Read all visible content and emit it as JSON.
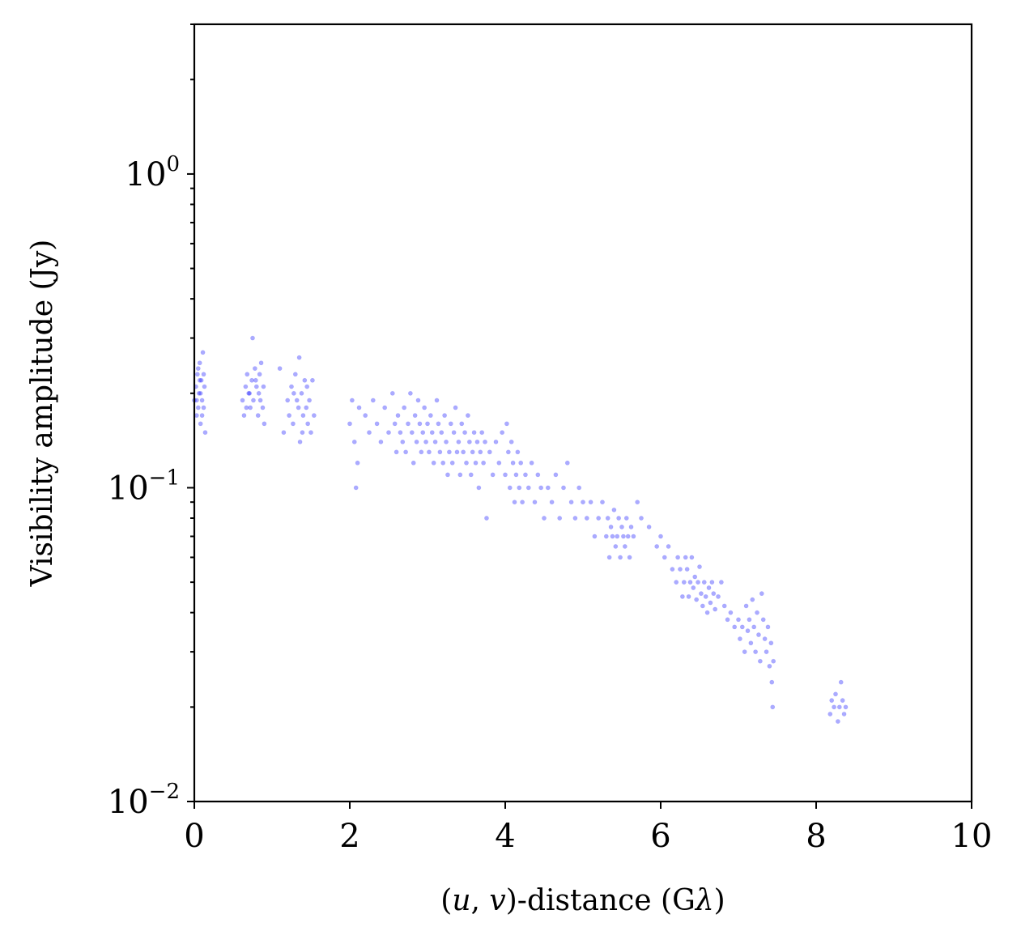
{
  "chart_data": {
    "type": "scatter",
    "xlabel": "(u, v)-distance (Gλ)",
    "xlabel_parts": {
      "open": "(",
      "u": "u",
      "comma": ", ",
      "v": "v",
      "rest": ")-distance (G",
      "lambda": "λ",
      "close": ")"
    },
    "ylabel": "Visibility amplitude (Jy)",
    "xlim": [
      0,
      10
    ],
    "ylim": [
      0.01,
      3
    ],
    "yscale": "log",
    "grid": false,
    "x_ticks": [
      {
        "value": 0,
        "label": "0"
      },
      {
        "value": 2,
        "label": "2"
      },
      {
        "value": 4,
        "label": "4"
      },
      {
        "value": 6,
        "label": "6"
      },
      {
        "value": 8,
        "label": "8"
      },
      {
        "value": 10,
        "label": "10"
      }
    ],
    "y_ticks": [
      {
        "value": 0.01,
        "base": "10",
        "exp": "−2"
      },
      {
        "value": 0.1,
        "base": "10",
        "exp": "−1"
      },
      {
        "value": 1,
        "base": "10",
        "exp": "0"
      }
    ],
    "marker_color": "#0000ff",
    "series": [
      {
        "points": [
          [
            0.0,
            0.19
          ],
          [
            0.02,
            0.21
          ],
          [
            0.03,
            0.17
          ],
          [
            0.04,
            0.23
          ],
          [
            0.05,
            0.18
          ],
          [
            0.06,
            0.2
          ],
          [
            0.07,
            0.25
          ],
          [
            0.08,
            0.16
          ],
          [
            0.09,
            0.22
          ],
          [
            0.1,
            0.19
          ],
          [
            0.11,
            0.27
          ],
          [
            0.12,
            0.18
          ],
          [
            0.13,
            0.21
          ],
          [
            0.14,
            0.15
          ],
          [
            0.05,
            0.24
          ],
          [
            0.08,
            0.2
          ],
          [
            0.12,
            0.23
          ],
          [
            0.03,
            0.19
          ],
          [
            0.1,
            0.17
          ],
          [
            0.07,
            0.22
          ],
          [
            0.62,
            0.19
          ],
          [
            0.64,
            0.17
          ],
          [
            0.66,
            0.21
          ],
          [
            0.68,
            0.23
          ],
          [
            0.7,
            0.2
          ],
          [
            0.72,
            0.18
          ],
          [
            0.74,
            0.22
          ],
          [
            0.75,
            0.3
          ],
          [
            0.76,
            0.19
          ],
          [
            0.78,
            0.24
          ],
          [
            0.8,
            0.21
          ],
          [
            0.82,
            0.17
          ],
          [
            0.83,
            0.2
          ],
          [
            0.84,
            0.23
          ],
          [
            0.85,
            0.19
          ],
          [
            0.86,
            0.25
          ],
          [
            0.88,
            0.18
          ],
          [
            0.89,
            0.21
          ],
          [
            0.9,
            0.16
          ],
          [
            0.79,
            0.22
          ],
          [
            0.71,
            0.2
          ],
          [
            0.67,
            0.18
          ],
          [
            1.1,
            0.24
          ],
          [
            1.15,
            0.15
          ],
          [
            1.2,
            0.19
          ],
          [
            1.22,
            0.17
          ],
          [
            1.25,
            0.21
          ],
          [
            1.27,
            0.16
          ],
          [
            1.3,
            0.23
          ],
          [
            1.32,
            0.19
          ],
          [
            1.34,
            0.18
          ],
          [
            1.35,
            0.26
          ],
          [
            1.36,
            0.14
          ],
          [
            1.38,
            0.2
          ],
          [
            1.4,
            0.17
          ],
          [
            1.42,
            0.22
          ],
          [
            1.44,
            0.18
          ],
          [
            1.46,
            0.16
          ],
          [
            1.48,
            0.19
          ],
          [
            1.5,
            0.15
          ],
          [
            1.52,
            0.22
          ],
          [
            1.54,
            0.17
          ],
          [
            1.28,
            0.2
          ],
          [
            1.45,
            0.21
          ],
          [
            1.39,
            0.15
          ],
          [
            2.0,
            0.16
          ],
          [
            2.03,
            0.19
          ],
          [
            2.06,
            0.14
          ],
          [
            2.08,
            0.1
          ],
          [
            2.1,
            0.12
          ],
          [
            2.12,
            0.18
          ],
          [
            2.2,
            0.17
          ],
          [
            2.25,
            0.15
          ],
          [
            2.3,
            0.19
          ],
          [
            2.35,
            0.16
          ],
          [
            2.4,
            0.14
          ],
          [
            2.45,
            0.18
          ],
          [
            2.5,
            0.15
          ],
          [
            2.55,
            0.2
          ],
          [
            2.58,
            0.16
          ],
          [
            2.6,
            0.13
          ],
          [
            2.62,
            0.17
          ],
          [
            2.65,
            0.15
          ],
          [
            2.68,
            0.14
          ],
          [
            2.7,
            0.18
          ],
          [
            2.72,
            0.13
          ],
          [
            2.75,
            0.16
          ],
          [
            2.78,
            0.2
          ],
          [
            2.8,
            0.15
          ],
          [
            2.82,
            0.12
          ],
          [
            2.84,
            0.17
          ],
          [
            2.86,
            0.14
          ],
          [
            2.88,
            0.19
          ],
          [
            2.9,
            0.16
          ],
          [
            2.92,
            0.13
          ],
          [
            2.94,
            0.15
          ],
          [
            2.96,
            0.18
          ],
          [
            2.98,
            0.14
          ],
          [
            3.0,
            0.16
          ],
          [
            3.02,
            0.13
          ],
          [
            3.04,
            0.17
          ],
          [
            3.06,
            0.15
          ],
          [
            3.08,
            0.12
          ],
          [
            3.1,
            0.14
          ],
          [
            3.12,
            0.19
          ],
          [
            3.14,
            0.16
          ],
          [
            3.16,
            0.13
          ],
          [
            3.18,
            0.15
          ],
          [
            3.2,
            0.12
          ],
          [
            3.22,
            0.17
          ],
          [
            3.24,
            0.14
          ],
          [
            3.26,
            0.11
          ],
          [
            3.28,
            0.13
          ],
          [
            3.3,
            0.16
          ],
          [
            3.32,
            0.12
          ],
          [
            3.34,
            0.15
          ],
          [
            3.36,
            0.18
          ],
          [
            3.38,
            0.13
          ],
          [
            3.4,
            0.14
          ],
          [
            3.42,
            0.11
          ],
          [
            3.44,
            0.16
          ],
          [
            3.46,
            0.13
          ],
          [
            3.48,
            0.15
          ],
          [
            3.5,
            0.12
          ],
          [
            3.52,
            0.17
          ],
          [
            3.54,
            0.14
          ],
          [
            3.56,
            0.11
          ],
          [
            3.58,
            0.13
          ],
          [
            3.6,
            0.15
          ],
          [
            3.62,
            0.12
          ],
          [
            3.64,
            0.14
          ],
          [
            3.66,
            0.1
          ],
          [
            3.68,
            0.13
          ],
          [
            3.7,
            0.15
          ],
          [
            3.72,
            0.12
          ],
          [
            3.74,
            0.14
          ],
          [
            3.76,
            0.08
          ],
          [
            3.8,
            0.13
          ],
          [
            3.84,
            0.11
          ],
          [
            3.88,
            0.14
          ],
          [
            3.92,
            0.12
          ],
          [
            3.96,
            0.15
          ],
          [
            4.0,
            0.11
          ],
          [
            4.02,
            0.16
          ],
          [
            4.04,
            0.13
          ],
          [
            4.06,
            0.1
          ],
          [
            4.08,
            0.14
          ],
          [
            4.1,
            0.12
          ],
          [
            4.12,
            0.09
          ],
          [
            4.14,
            0.11
          ],
          [
            4.16,
            0.13
          ],
          [
            4.18,
            0.1
          ],
          [
            4.2,
            0.12
          ],
          [
            4.22,
            0.09
          ],
          [
            4.26,
            0.11
          ],
          [
            4.3,
            0.1
          ],
          [
            4.34,
            0.12
          ],
          [
            4.38,
            0.09
          ],
          [
            4.42,
            0.11
          ],
          [
            4.46,
            0.1
          ],
          [
            4.5,
            0.08
          ],
          [
            4.55,
            0.1
          ],
          [
            4.6,
            0.09
          ],
          [
            4.65,
            0.11
          ],
          [
            4.7,
            0.08
          ],
          [
            4.75,
            0.1
          ],
          [
            4.8,
            0.12
          ],
          [
            4.85,
            0.09
          ],
          [
            4.9,
            0.08
          ],
          [
            4.95,
            0.1
          ],
          [
            5.0,
            0.09
          ],
          [
            5.05,
            0.08
          ],
          [
            5.1,
            0.09
          ],
          [
            5.15,
            0.07
          ],
          [
            5.2,
            0.08
          ],
          [
            5.25,
            0.09
          ],
          [
            5.3,
            0.07
          ],
          [
            5.32,
            0.08
          ],
          [
            5.34,
            0.06
          ],
          [
            5.36,
            0.075
          ],
          [
            5.38,
            0.07
          ],
          [
            5.4,
            0.085
          ],
          [
            5.42,
            0.065
          ],
          [
            5.44,
            0.07
          ],
          [
            5.46,
            0.08
          ],
          [
            5.48,
            0.06
          ],
          [
            5.5,
            0.075
          ],
          [
            5.52,
            0.07
          ],
          [
            5.54,
            0.065
          ],
          [
            5.56,
            0.08
          ],
          [
            5.58,
            0.07
          ],
          [
            5.6,
            0.06
          ],
          [
            5.62,
            0.075
          ],
          [
            5.65,
            0.07
          ],
          [
            5.7,
            0.09
          ],
          [
            5.75,
            0.08
          ],
          [
            5.85,
            0.075
          ],
          [
            5.95,
            0.065
          ],
          [
            6.0,
            0.07
          ],
          [
            6.05,
            0.06
          ],
          [
            6.1,
            0.065
          ],
          [
            6.15,
            0.055
          ],
          [
            6.2,
            0.05
          ],
          [
            6.22,
            0.06
          ],
          [
            6.25,
            0.055
          ],
          [
            6.28,
            0.045
          ],
          [
            6.3,
            0.05
          ],
          [
            6.32,
            0.06
          ],
          [
            6.34,
            0.055
          ],
          [
            6.36,
            0.045
          ],
          [
            6.38,
            0.05
          ],
          [
            6.4,
            0.06
          ],
          [
            6.42,
            0.048
          ],
          [
            6.44,
            0.052
          ],
          [
            6.46,
            0.044
          ],
          [
            6.48,
            0.05
          ],
          [
            6.5,
            0.056
          ],
          [
            6.52,
            0.046
          ],
          [
            6.54,
            0.042
          ],
          [
            6.56,
            0.05
          ],
          [
            6.58,
            0.045
          ],
          [
            6.6,
            0.04
          ],
          [
            6.62,
            0.048
          ],
          [
            6.64,
            0.043
          ],
          [
            6.66,
            0.05
          ],
          [
            6.68,
            0.046
          ],
          [
            6.7,
            0.041
          ],
          [
            6.74,
            0.045
          ],
          [
            6.78,
            0.05
          ],
          [
            6.82,
            0.042
          ],
          [
            6.86,
            0.038
          ],
          [
            6.9,
            0.04
          ],
          [
            6.95,
            0.036
          ],
          [
            7.0,
            0.038
          ],
          [
            7.02,
            0.033
          ],
          [
            7.05,
            0.036
          ],
          [
            7.08,
            0.03
          ],
          [
            7.1,
            0.042
          ],
          [
            7.12,
            0.035
          ],
          [
            7.14,
            0.038
          ],
          [
            7.16,
            0.032
          ],
          [
            7.18,
            0.044
          ],
          [
            7.2,
            0.036
          ],
          [
            7.22,
            0.03
          ],
          [
            7.24,
            0.04
          ],
          [
            7.26,
            0.034
          ],
          [
            7.28,
            0.028
          ],
          [
            7.3,
            0.046
          ],
          [
            7.32,
            0.038
          ],
          [
            7.34,
            0.033
          ],
          [
            7.36,
            0.03
          ],
          [
            7.38,
            0.036
          ],
          [
            7.4,
            0.027
          ],
          [
            7.42,
            0.032
          ],
          [
            7.43,
            0.024
          ],
          [
            7.44,
            0.02
          ],
          [
            7.45,
            0.028
          ],
          [
            8.18,
            0.019
          ],
          [
            8.2,
            0.021
          ],
          [
            8.23,
            0.02
          ],
          [
            8.25,
            0.022
          ],
          [
            8.28,
            0.018
          ],
          [
            8.3,
            0.02
          ],
          [
            8.32,
            0.024
          ],
          [
            8.34,
            0.021
          ],
          [
            8.36,
            0.019
          ],
          [
            8.38,
            0.02
          ]
        ]
      }
    ]
  }
}
